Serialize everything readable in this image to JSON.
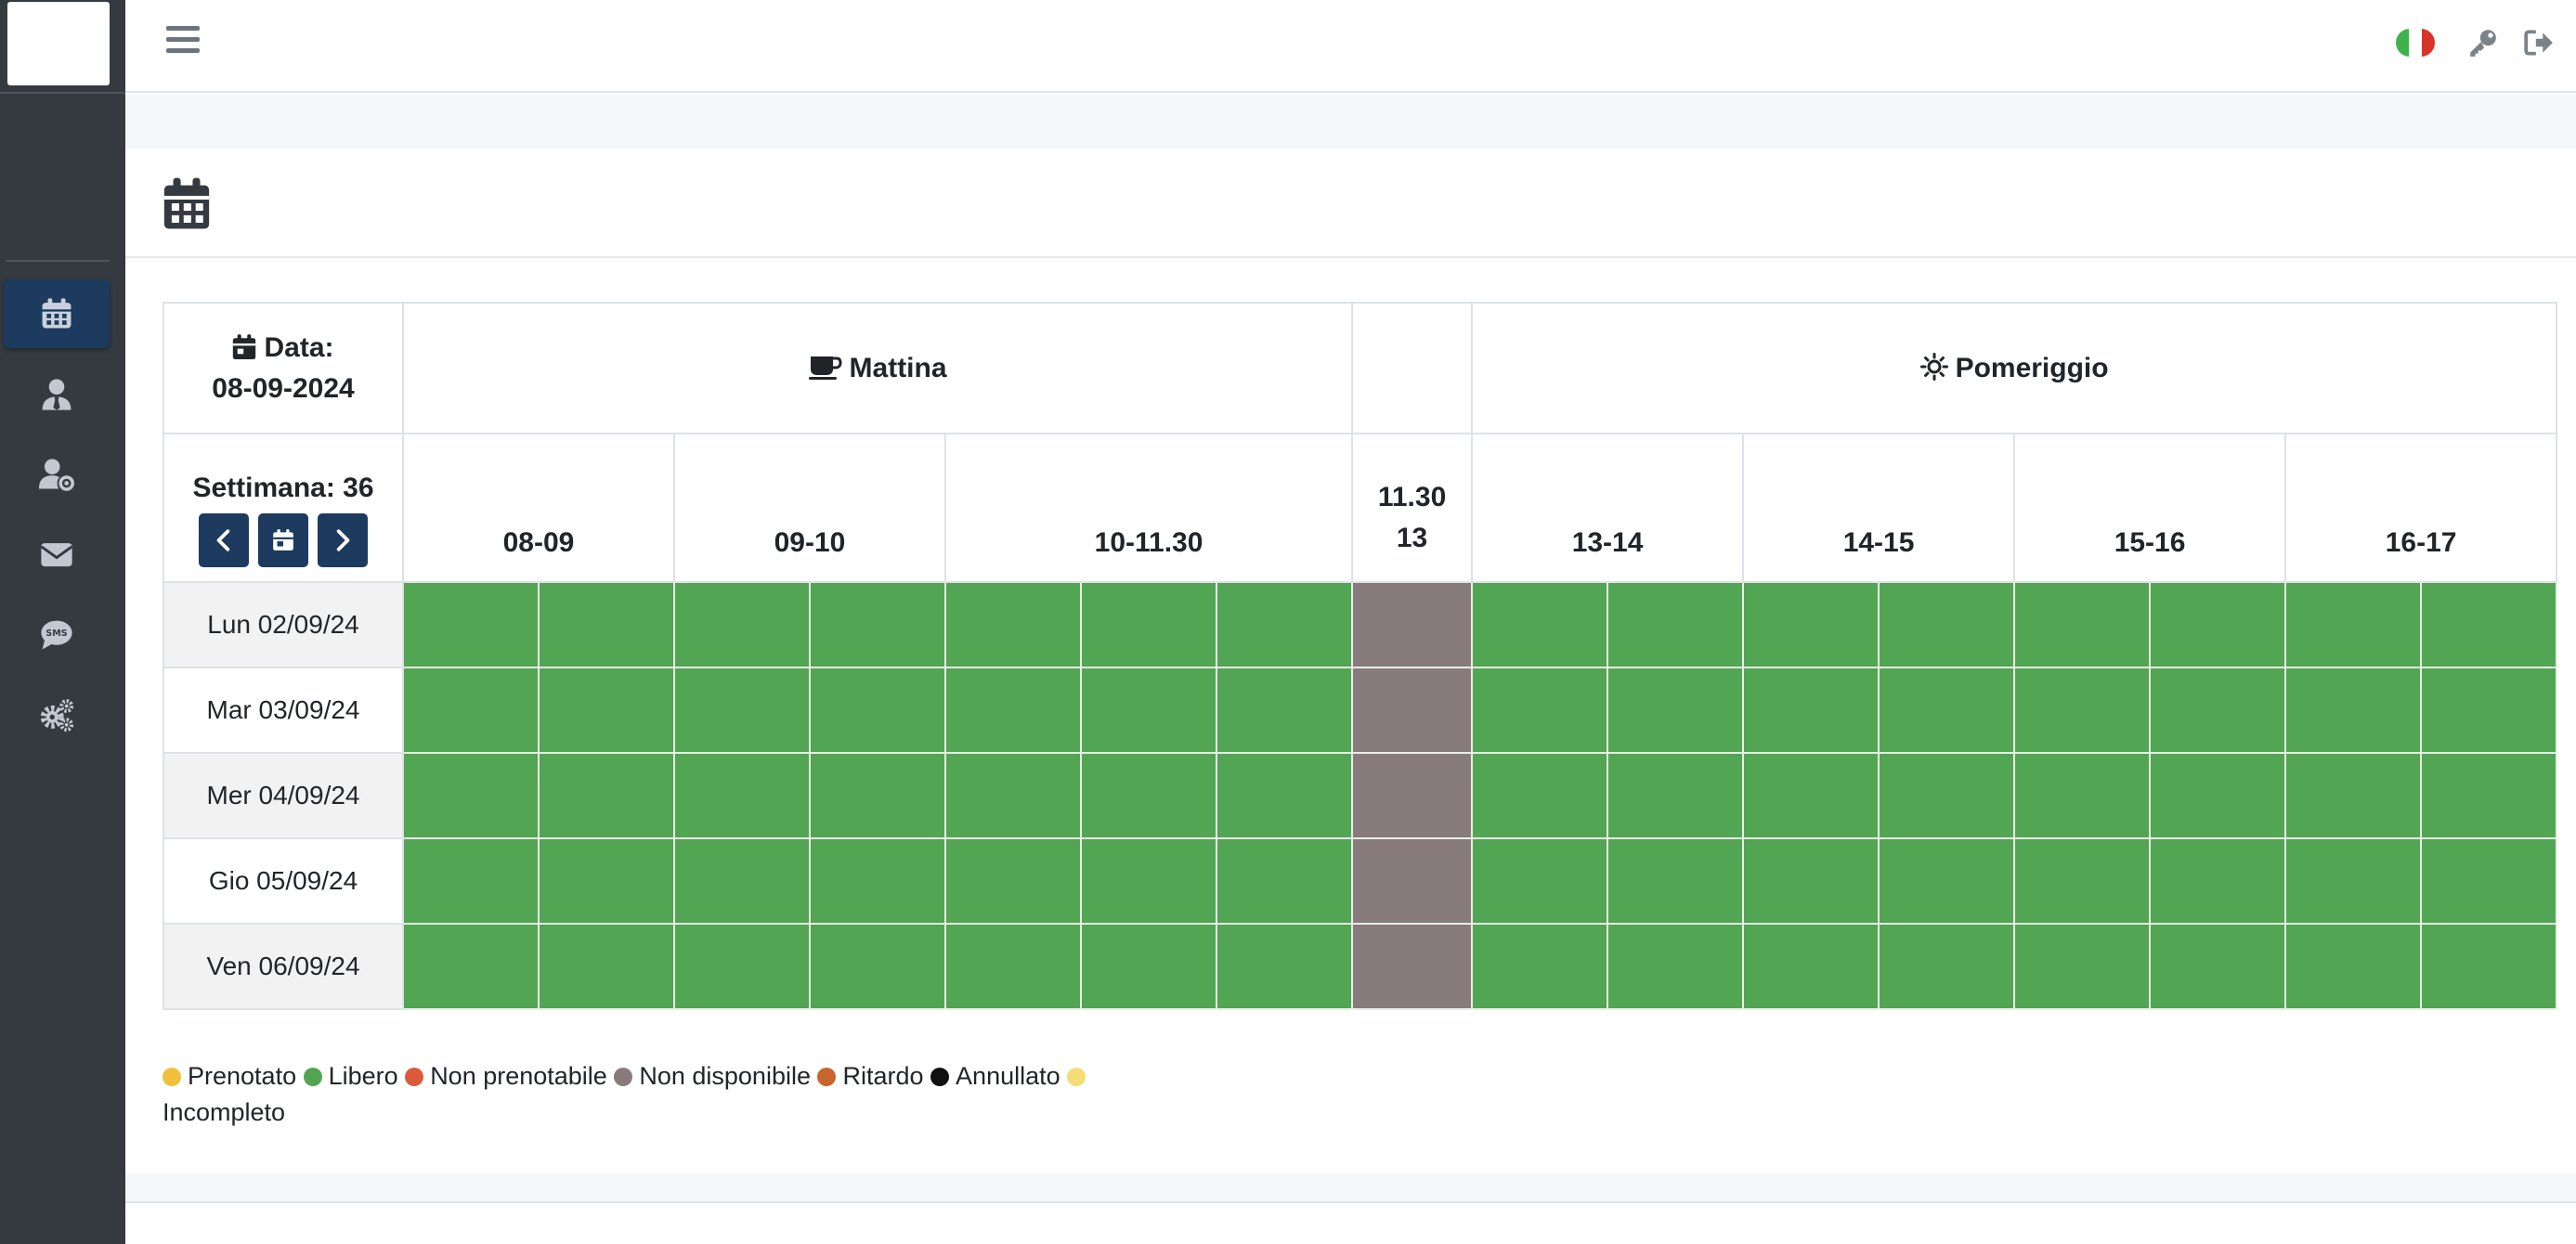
{
  "sidebar": {
    "nav": [
      {
        "icon": "calendar-icon",
        "active": true
      },
      {
        "icon": "user-tie-icon",
        "active": false
      },
      {
        "icon": "user-gear-icon",
        "active": false
      },
      {
        "icon": "envelope-icon",
        "active": false
      },
      {
        "icon": "sms-icon",
        "active": false
      },
      {
        "icon": "gears-icon",
        "active": false
      }
    ]
  },
  "topbar": {
    "language_flag": "it",
    "icons": [
      "hamburger-icon",
      "key-icon",
      "sign-out-icon"
    ]
  },
  "schedule": {
    "date_label": "Data:",
    "date_value": "08-09-2024",
    "week_label": "Settimana: 36",
    "morning_label": "Mattina",
    "afternoon_label": "Pomeriggio",
    "slots": [
      "08-09",
      "09-10",
      "10-11.30",
      "11.30 13",
      "13-14",
      "14-15",
      "15-16",
      "16-17"
    ],
    "slot_break_line1": "11.30",
    "slot_break_line2": "13",
    "days": [
      "Lun 02/09/24",
      "Mar 03/09/24",
      "Mer 04/09/24",
      "Gio 05/09/24",
      "Ven 06/09/24"
    ],
    "status_per_day": [
      "Libero",
      "Libero",
      "Libero",
      "Libero",
      "Libero",
      "Libero",
      "Libero",
      "Non disponibile",
      "Libero",
      "Libero",
      "Libero",
      "Libero",
      "Libero",
      "Libero",
      "Libero",
      "Libero"
    ]
  },
  "legend": [
    {
      "label": "Prenotato",
      "color": "#f0c03c"
    },
    {
      "label": "Libero",
      "color": "#52a552"
    },
    {
      "label": "Non prenotabile",
      "color": "#dc5a3c"
    },
    {
      "label": "Non disponibile",
      "color": "#887b7b"
    },
    {
      "label": "Ritardo",
      "color": "#c8642d"
    },
    {
      "label": "Annullato",
      "color": "#111111"
    },
    {
      "label": "Incompleto",
      "color": "#f5dc78"
    }
  ],
  "colors": {
    "sidebar_bg": "#343a40",
    "nav_active": "#1d3a5f",
    "slot_free": "#52a552",
    "slot_unavailable": "#887b7b"
  }
}
